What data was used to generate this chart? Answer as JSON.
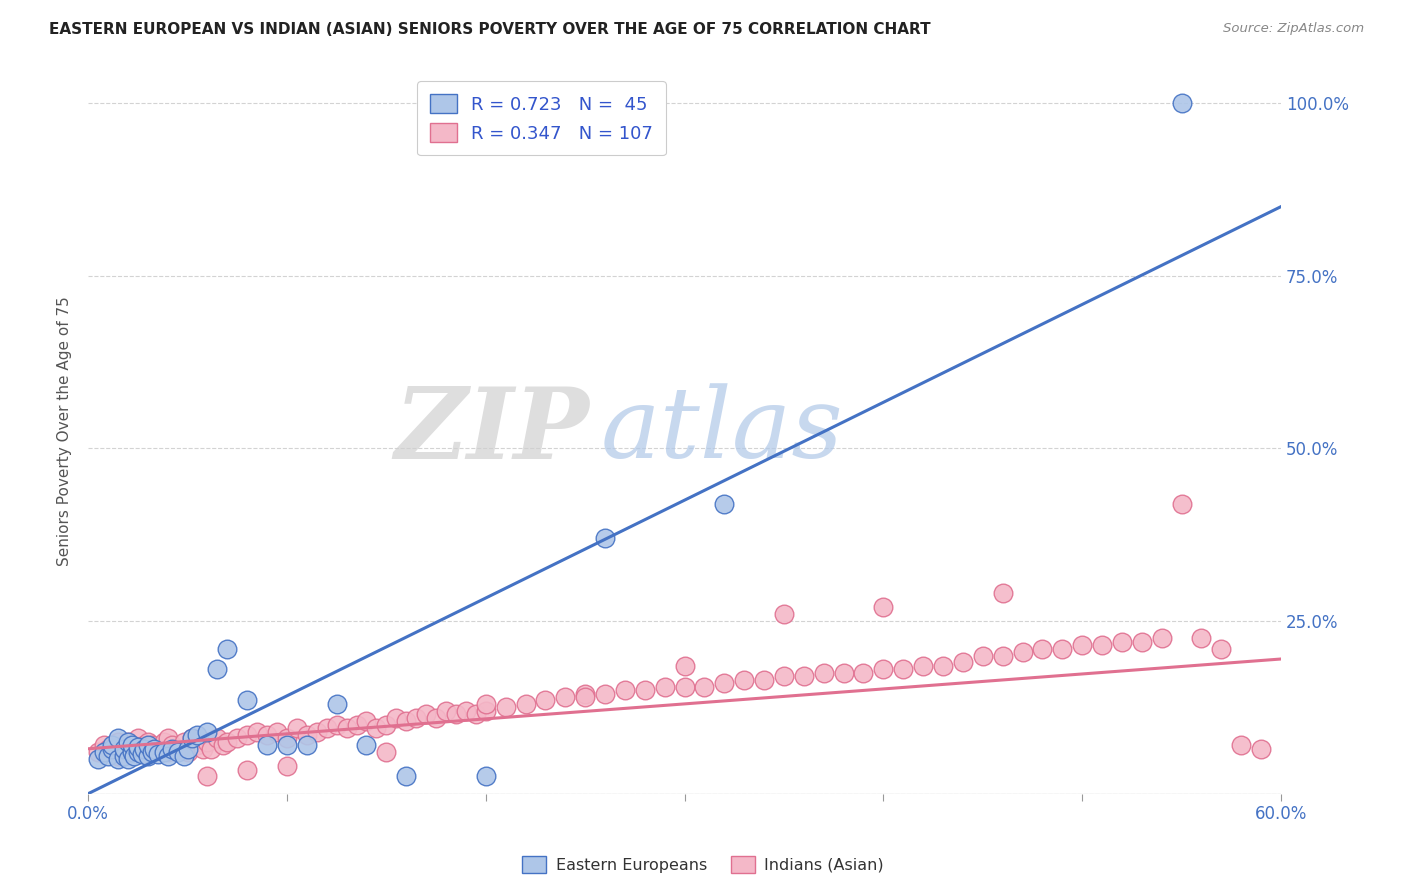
{
  "title": "EASTERN EUROPEAN VS INDIAN (ASIAN) SENIORS POVERTY OVER THE AGE OF 75 CORRELATION CHART",
  "source": "Source: ZipAtlas.com",
  "ylabel": "Seniors Poverty Over the Age of 75",
  "xlim": [
    0.0,
    0.6
  ],
  "ylim": [
    0.0,
    1.05
  ],
  "xticks": [
    0.0,
    0.1,
    0.2,
    0.3,
    0.4,
    0.5,
    0.6
  ],
  "xticklabels": [
    "0.0%",
    "",
    "",
    "",
    "",
    "",
    "60.0%"
  ],
  "yticks": [
    0.0,
    0.25,
    0.5,
    0.75,
    1.0
  ],
  "yticklabels": [
    "",
    "25.0%",
    "50.0%",
    "75.0%",
    "100.0%"
  ],
  "blue_fill_color": "#aec6e8",
  "blue_edge_color": "#4472c4",
  "pink_fill_color": "#f4b8c8",
  "pink_edge_color": "#e07090",
  "blue_line_color": "#4472c4",
  "pink_line_color": "#e07090",
  "R_blue": 0.723,
  "N_blue": 45,
  "R_pink": 0.347,
  "N_pink": 107,
  "legend_label_blue": "Eastern Europeans",
  "legend_label_pink": "Indians (Asian)",
  "watermark_zip": "ZIP",
  "watermark_atlas": "atlas",
  "background_color": "#ffffff",
  "blue_line_x0": 0.0,
  "blue_line_y0": 0.0,
  "blue_line_x1": 0.6,
  "blue_line_y1": 0.85,
  "pink_line_x0": 0.0,
  "pink_line_y0": 0.065,
  "pink_line_x1": 0.6,
  "pink_line_y1": 0.195,
  "blue_scatter_x": [
    0.005,
    0.008,
    0.01,
    0.012,
    0.012,
    0.015,
    0.015,
    0.018,
    0.018,
    0.02,
    0.02,
    0.022,
    0.022,
    0.023,
    0.025,
    0.025,
    0.027,
    0.028,
    0.03,
    0.03,
    0.032,
    0.033,
    0.035,
    0.038,
    0.04,
    0.042,
    0.045,
    0.048,
    0.05,
    0.052,
    0.055,
    0.06,
    0.065,
    0.07,
    0.08,
    0.09,
    0.1,
    0.11,
    0.125,
    0.14,
    0.16,
    0.2,
    0.26,
    0.32,
    0.55
  ],
  "blue_scatter_y": [
    0.05,
    0.06,
    0.055,
    0.065,
    0.07,
    0.05,
    0.08,
    0.055,
    0.065,
    0.05,
    0.075,
    0.06,
    0.07,
    0.055,
    0.06,
    0.068,
    0.058,
    0.065,
    0.055,
    0.07,
    0.06,
    0.065,
    0.058,
    0.06,
    0.055,
    0.065,
    0.06,
    0.055,
    0.065,
    0.08,
    0.085,
    0.09,
    0.18,
    0.21,
    0.135,
    0.07,
    0.07,
    0.07,
    0.13,
    0.07,
    0.025,
    0.025,
    0.37,
    0.42,
    1.0
  ],
  "pink_scatter_x": [
    0.005,
    0.008,
    0.01,
    0.012,
    0.015,
    0.015,
    0.018,
    0.02,
    0.02,
    0.022,
    0.025,
    0.025,
    0.028,
    0.03,
    0.03,
    0.032,
    0.035,
    0.038,
    0.04,
    0.04,
    0.042,
    0.045,
    0.048,
    0.05,
    0.052,
    0.055,
    0.058,
    0.06,
    0.062,
    0.065,
    0.068,
    0.07,
    0.075,
    0.08,
    0.085,
    0.09,
    0.095,
    0.1,
    0.105,
    0.11,
    0.115,
    0.12,
    0.125,
    0.13,
    0.135,
    0.14,
    0.145,
    0.15,
    0.155,
    0.16,
    0.165,
    0.17,
    0.175,
    0.18,
    0.185,
    0.19,
    0.195,
    0.2,
    0.21,
    0.22,
    0.23,
    0.24,
    0.25,
    0.26,
    0.27,
    0.28,
    0.29,
    0.3,
    0.31,
    0.32,
    0.33,
    0.34,
    0.35,
    0.36,
    0.37,
    0.38,
    0.39,
    0.4,
    0.41,
    0.42,
    0.43,
    0.44,
    0.45,
    0.46,
    0.47,
    0.48,
    0.49,
    0.5,
    0.51,
    0.52,
    0.53,
    0.54,
    0.55,
    0.56,
    0.57,
    0.58,
    0.59,
    0.46,
    0.4,
    0.35,
    0.3,
    0.25,
    0.2,
    0.15,
    0.1,
    0.08,
    0.06
  ],
  "pink_scatter_y": [
    0.06,
    0.07,
    0.065,
    0.06,
    0.055,
    0.075,
    0.065,
    0.06,
    0.075,
    0.065,
    0.06,
    0.08,
    0.07,
    0.058,
    0.075,
    0.07,
    0.065,
    0.075,
    0.06,
    0.08,
    0.07,
    0.065,
    0.075,
    0.06,
    0.08,
    0.07,
    0.065,
    0.075,
    0.065,
    0.08,
    0.07,
    0.075,
    0.08,
    0.085,
    0.09,
    0.085,
    0.09,
    0.08,
    0.095,
    0.085,
    0.09,
    0.095,
    0.1,
    0.095,
    0.1,
    0.105,
    0.095,
    0.1,
    0.11,
    0.105,
    0.11,
    0.115,
    0.11,
    0.12,
    0.115,
    0.12,
    0.115,
    0.12,
    0.125,
    0.13,
    0.135,
    0.14,
    0.145,
    0.145,
    0.15,
    0.15,
    0.155,
    0.155,
    0.155,
    0.16,
    0.165,
    0.165,
    0.17,
    0.17,
    0.175,
    0.175,
    0.175,
    0.18,
    0.18,
    0.185,
    0.185,
    0.19,
    0.2,
    0.2,
    0.205,
    0.21,
    0.21,
    0.215,
    0.215,
    0.22,
    0.22,
    0.225,
    0.42,
    0.225,
    0.21,
    0.07,
    0.065,
    0.29,
    0.27,
    0.26,
    0.185,
    0.14,
    0.13,
    0.06,
    0.04,
    0.035,
    0.025
  ]
}
